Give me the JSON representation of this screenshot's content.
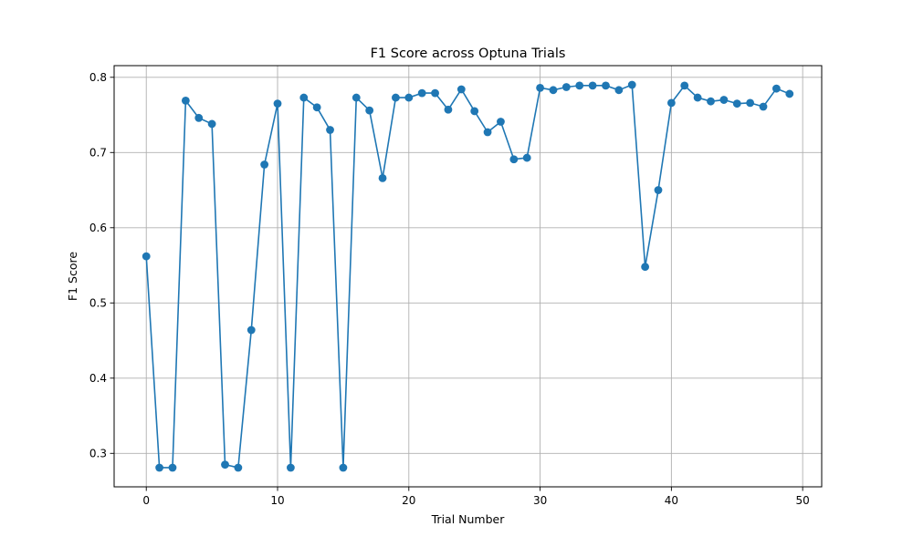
{
  "chart_data": {
    "type": "line",
    "title": "F1 Score across Optuna Trials",
    "xlabel": "Trial Number",
    "ylabel": "F1 Score",
    "xlim": [
      -2.45,
      51.45
    ],
    "ylim": [
      0.2555,
      0.8155
    ],
    "xticks": [
      0,
      10,
      20,
      30,
      40,
      50
    ],
    "yticks": [
      0.3,
      0.4,
      0.5,
      0.6,
      0.7,
      0.8
    ],
    "grid": true,
    "marker": "circle",
    "color": "#1f77b4",
    "series": [
      {
        "x": [
          0,
          1,
          2,
          3,
          4,
          5,
          6,
          7,
          8,
          9,
          10,
          11,
          12,
          13,
          14,
          15,
          16,
          17,
          18,
          19,
          20,
          21,
          22,
          23,
          24,
          25,
          26,
          27,
          28,
          29,
          30,
          31,
          32,
          33,
          34,
          35,
          36,
          37,
          38,
          39,
          40,
          41,
          42,
          43,
          44,
          45,
          46,
          47,
          48,
          49
        ],
        "values": [
          0.562,
          0.281,
          0.281,
          0.769,
          0.746,
          0.738,
          0.285,
          0.281,
          0.464,
          0.684,
          0.765,
          0.281,
          0.773,
          0.76,
          0.73,
          0.281,
          0.773,
          0.756,
          0.666,
          0.773,
          0.773,
          0.779,
          0.779,
          0.757,
          0.784,
          0.755,
          0.727,
          0.741,
          0.691,
          0.693,
          0.786,
          0.783,
          0.787,
          0.789,
          0.789,
          0.789,
          0.783,
          0.79,
          0.548,
          0.65,
          0.766,
          0.789,
          0.773,
          0.768,
          0.77,
          0.765,
          0.766,
          0.761,
          0.785,
          0.778
        ]
      }
    ]
  }
}
